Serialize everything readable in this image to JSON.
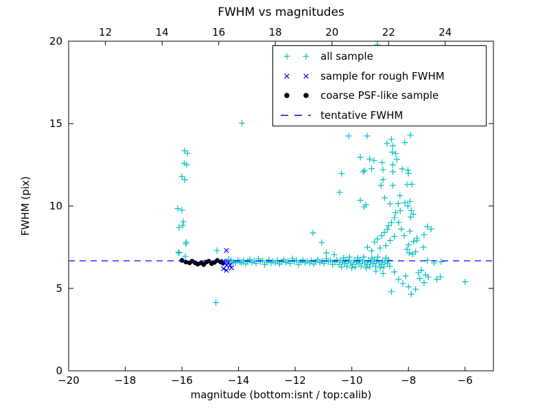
{
  "title": "FWHM vs magnitudes",
  "axes": {
    "xlabel": "magnitude (bottom:isnt / top:calib)",
    "ylabel": "FWHM (pix)",
    "x_ticks_bottom": {
      "values": [
        -20,
        -18,
        -16,
        -14,
        -12,
        -10,
        -8,
        -6
      ],
      "labels": [
        "−20",
        "−18",
        "−16",
        "−14",
        "−12",
        "−10",
        "−8",
        "−6"
      ]
    },
    "x_ticks_top": {
      "calib_values": [
        12,
        14,
        16,
        18,
        20,
        22,
        24
      ],
      "positions_isnt": [
        -18.7,
        -16.7,
        -14.7,
        -12.7,
        -10.7,
        -8.7,
        -6.7
      ],
      "labels": [
        "12",
        "14",
        "16",
        "18",
        "20",
        "22",
        "24"
      ]
    },
    "y_ticks": {
      "values": [
        0,
        5,
        10,
        15,
        20
      ],
      "labels": [
        "0",
        "5",
        "10",
        "15",
        "20"
      ]
    }
  },
  "legend": {
    "items": [
      {
        "label": "all sample",
        "marker": "plus",
        "color": "#00bfbf"
      },
      {
        "label": "sample for rough FWHM",
        "marker": "x",
        "color": "#0000ff"
      },
      {
        "label": "coarse PSF-like sample",
        "marker": "dot",
        "color": "#000000"
      },
      {
        "label": "tentative FWHM",
        "marker": "dash",
        "color": "#0000ff"
      }
    ]
  },
  "chart_data": {
    "type": "scatter",
    "title": "FWHM vs magnitudes",
    "xlabel": "magnitude (bottom:isnt / top:calib)",
    "ylabel": "FWHM (pix)",
    "xlim": [
      -20,
      -5
    ],
    "ylim": [
      0,
      20
    ],
    "grid": false,
    "legend_position": "upper right",
    "top_axis_relation": "calib = isnt + 30.7",
    "series": [
      {
        "name": "all sample",
        "marker": "plus",
        "color": "#00bfbf",
        "points": [
          [
            -15.9,
            13.35
          ],
          [
            -15.8,
            13.2
          ],
          [
            -15.92,
            12.6
          ],
          [
            -15.83,
            12.5
          ],
          [
            -16.0,
            11.78
          ],
          [
            -15.9,
            11.6
          ],
          [
            -16.15,
            9.85
          ],
          [
            -16.0,
            9.75
          ],
          [
            -15.95,
            9.05
          ],
          [
            -16.1,
            8.7
          ],
          [
            -15.97,
            8.82
          ],
          [
            -15.85,
            7.8
          ],
          [
            -16.1,
            7.15
          ],
          [
            -15.86,
            7.7
          ],
          [
            -16.12,
            7.2
          ],
          [
            -15.88,
            6.95
          ],
          [
            -14.35,
            6.78
          ],
          [
            -14.26,
            6.68
          ],
          [
            -14.19,
            6.6
          ],
          [
            -14.11,
            6.55
          ],
          [
            -14.02,
            6.7
          ],
          [
            -14.76,
            7.3
          ],
          [
            -13.95,
            6.62
          ],
          [
            -13.88,
            15.03
          ],
          [
            -14.8,
            4.14
          ],
          [
            -11.37,
            8.37
          ],
          [
            -11.06,
            7.78
          ],
          [
            -10.9,
            7.15
          ],
          [
            -10.62,
            7.05
          ],
          [
            -9.1,
            19.8
          ],
          [
            -6.0,
            5.4
          ],
          [
            -6.87,
            5.7
          ],
          [
            -7.2,
            8.6
          ],
          [
            -13.9,
            6.55
          ],
          [
            -13.83,
            6.7
          ],
          [
            -13.75,
            6.48
          ],
          [
            -13.68,
            6.62
          ],
          [
            -13.6,
            6.75
          ],
          [
            -13.53,
            6.58
          ],
          [
            -13.45,
            6.66
          ],
          [
            -13.38,
            6.52
          ],
          [
            -13.3,
            6.8
          ],
          [
            -13.23,
            6.63
          ],
          [
            -13.15,
            6.7
          ],
          [
            -13.08,
            6.45
          ],
          [
            -13.0,
            6.6
          ],
          [
            -12.93,
            6.72
          ],
          [
            -12.85,
            6.55
          ],
          [
            -12.78,
            6.65
          ],
          [
            -12.7,
            6.55
          ],
          [
            -12.63,
            6.7
          ],
          [
            -12.55,
            6.48
          ],
          [
            -12.48,
            6.62
          ],
          [
            -12.4,
            6.75
          ],
          [
            -12.33,
            6.58
          ],
          [
            -12.25,
            6.66
          ],
          [
            -12.18,
            6.52
          ],
          [
            -12.1,
            6.8
          ],
          [
            -12.03,
            6.63
          ],
          [
            -11.95,
            6.7
          ],
          [
            -11.88,
            6.45
          ],
          [
            -11.8,
            6.6
          ],
          [
            -11.73,
            6.72
          ],
          [
            -11.65,
            6.55
          ],
          [
            -11.58,
            6.65
          ],
          [
            -11.5,
            6.55
          ],
          [
            -11.43,
            6.7
          ],
          [
            -11.35,
            6.48
          ],
          [
            -11.28,
            6.62
          ],
          [
            -11.2,
            6.75
          ],
          [
            -11.13,
            6.58
          ],
          [
            -11.05,
            6.66
          ],
          [
            -10.98,
            6.52
          ],
          [
            -10.9,
            6.8
          ],
          [
            -10.83,
            6.63
          ],
          [
            -10.75,
            6.7
          ],
          [
            -10.68,
            6.45
          ],
          [
            -10.6,
            6.6
          ],
          [
            -10.53,
            6.72
          ],
          [
            -10.45,
            6.45
          ],
          [
            -10.41,
            6.7
          ],
          [
            -10.37,
            6.3
          ],
          [
            -10.33,
            6.6
          ],
          [
            -10.29,
            6.85
          ],
          [
            -10.25,
            6.5
          ],
          [
            -10.21,
            6.72
          ],
          [
            -10.17,
            6.35
          ],
          [
            -10.12,
            6.65
          ],
          [
            -10.08,
            6.9
          ],
          [
            -10.04,
            6.55
          ],
          [
            -10.0,
            6.25
          ],
          [
            -9.96,
            6.45
          ],
          [
            -9.92,
            6.7
          ],
          [
            -9.88,
            6.3
          ],
          [
            -9.83,
            6.6
          ],
          [
            -9.79,
            6.85
          ],
          [
            -9.75,
            6.5
          ],
          [
            -9.71,
            6.72
          ],
          [
            -9.67,
            6.35
          ],
          [
            -9.62,
            6.65
          ],
          [
            -9.58,
            6.9
          ],
          [
            -9.54,
            6.55
          ],
          [
            -9.5,
            6.25
          ],
          [
            -9.46,
            6.45
          ],
          [
            -9.41,
            6.7
          ],
          [
            -9.37,
            6.3
          ],
          [
            -9.33,
            6.6
          ],
          [
            -9.29,
            6.85
          ],
          [
            -9.25,
            6.5
          ],
          [
            -9.2,
            6.72
          ],
          [
            -9.16,
            6.35
          ],
          [
            -9.12,
            6.65
          ],
          [
            -9.08,
            6.9
          ],
          [
            -9.04,
            6.55
          ],
          [
            -9.0,
            6.25
          ],
          [
            -8.95,
            6.45
          ],
          [
            -8.91,
            6.7
          ],
          [
            -8.87,
            6.3
          ],
          [
            -8.83,
            6.6
          ],
          [
            -8.79,
            6.85
          ],
          [
            -8.74,
            6.5
          ],
          [
            -8.7,
            6.72
          ],
          [
            -8.66,
            6.35
          ],
          [
            -7.33,
            6.7
          ],
          [
            -7.1,
            6.55
          ],
          [
            -6.85,
            6.62
          ],
          [
            -10.11,
            14.25
          ],
          [
            -9.46,
            14.25
          ],
          [
            -7.93,
            14.3
          ],
          [
            -8.6,
            14.05
          ],
          [
            -8.76,
            13.8
          ],
          [
            -8.55,
            13.65
          ],
          [
            -8.13,
            13.85
          ],
          [
            -8.57,
            13.27
          ],
          [
            -8.45,
            13.18
          ],
          [
            -9.7,
            12.96
          ],
          [
            -9.37,
            12.85
          ],
          [
            -9.22,
            12.76
          ],
          [
            -8.93,
            12.64
          ],
          [
            -8.55,
            12.5
          ],
          [
            -8.41,
            12.83
          ],
          [
            -9.3,
            12.27
          ],
          [
            -9.55,
            12.16
          ],
          [
            -8.9,
            12.2
          ],
          [
            -8.55,
            12.08
          ],
          [
            -8.22,
            12.25
          ],
          [
            -8.02,
            12.18
          ],
          [
            -10.36,
            11.97
          ],
          [
            -9.6,
            12.08
          ],
          [
            -8.0,
            11.98
          ],
          [
            -8.9,
            11.6
          ],
          [
            -8.97,
            11.25
          ],
          [
            -8.55,
            11.25
          ],
          [
            -8.05,
            11.3
          ],
          [
            -7.88,
            11.32
          ],
          [
            -10.43,
            10.83
          ],
          [
            -9.7,
            10.35
          ],
          [
            -9.5,
            10.08
          ],
          [
            -9.57,
            9.95
          ],
          [
            -8.84,
            10.5
          ],
          [
            -8.65,
            10.13
          ],
          [
            -8.36,
            10.15
          ],
          [
            -8.29,
            9.72
          ],
          [
            -8.3,
            10.63
          ],
          [
            -8.12,
            10.2
          ],
          [
            -7.95,
            10.28
          ],
          [
            -8.02,
            10.0
          ],
          [
            -7.9,
            9.72
          ],
          [
            -7.83,
            9.5
          ],
          [
            -7.92,
            9.33
          ],
          [
            -8.45,
            9.6
          ],
          [
            -7.33,
            8.75
          ],
          [
            -7.95,
            8.47
          ],
          [
            -8.15,
            8.2
          ],
          [
            -7.7,
            8.05
          ],
          [
            -7.45,
            8.26
          ],
          [
            -8.0,
            7.64
          ],
          [
            -7.82,
            7.84
          ],
          [
            -7.7,
            7.92
          ],
          [
            -7.47,
            7.5
          ],
          [
            -8.05,
            7.37
          ],
          [
            -7.97,
            7.15
          ],
          [
            -7.85,
            7.08
          ],
          [
            -7.75,
            7.22
          ],
          [
            -8.5,
            9.3
          ],
          [
            -8.6,
            9.0
          ],
          [
            -8.7,
            8.8
          ],
          [
            -8.75,
            8.58
          ],
          [
            -8.85,
            8.4
          ],
          [
            -8.95,
            8.2
          ],
          [
            -9.1,
            8.0
          ],
          [
            -9.2,
            7.8
          ],
          [
            -8.35,
            9.0
          ],
          [
            -8.25,
            8.6
          ],
          [
            -8.5,
            8.15
          ],
          [
            -8.65,
            7.9
          ],
          [
            -8.8,
            7.6
          ],
          [
            -9.0,
            7.45
          ],
          [
            -9.3,
            7.28
          ],
          [
            -9.45,
            7.5
          ],
          [
            -8.6,
            4.8
          ],
          [
            -8.2,
            5.3
          ],
          [
            -8.0,
            5.1
          ],
          [
            -7.9,
            4.65
          ],
          [
            -7.75,
            4.95
          ],
          [
            -8.35,
            5.55
          ],
          [
            -8.1,
            5.75
          ],
          [
            -7.6,
            5.6
          ],
          [
            -7.4,
            5.83
          ],
          [
            -7.3,
            5.7
          ],
          [
            -7.0,
            5.56
          ],
          [
            -7.45,
            5.35
          ],
          [
            -8.5,
            6.0
          ],
          [
            -8.9,
            5.9
          ],
          [
            -9.15,
            6.05
          ],
          [
            -7.55,
            6.1
          ],
          [
            -7.65,
            5.95
          ]
        ]
      },
      {
        "name": "sample for rough FWHM",
        "marker": "x",
        "color": "#0000ff",
        "points": [
          [
            -14.43,
            7.3
          ],
          [
            -14.53,
            6.65
          ],
          [
            -14.48,
            6.5
          ],
          [
            -14.42,
            6.4
          ],
          [
            -14.53,
            6.2
          ],
          [
            -14.43,
            6.1
          ],
          [
            -14.35,
            6.6
          ],
          [
            -14.3,
            6.4
          ],
          [
            -14.25,
            6.25
          ]
        ]
      },
      {
        "name": "coarse PSF-like sample",
        "marker": "dot",
        "color": "#000000",
        "points": [
          [
            -16.0,
            6.7
          ],
          [
            -15.86,
            6.6
          ],
          [
            -15.73,
            6.55
          ],
          [
            -15.64,
            6.65
          ],
          [
            -15.53,
            6.55
          ],
          [
            -15.44,
            6.47
          ],
          [
            -15.32,
            6.55
          ],
          [
            -15.23,
            6.44
          ],
          [
            -15.14,
            6.6
          ],
          [
            -15.05,
            6.65
          ],
          [
            -14.95,
            6.5
          ],
          [
            -14.85,
            6.58
          ],
          [
            -14.75,
            6.7
          ],
          [
            -14.63,
            6.6
          ],
          [
            -14.55,
            6.55
          ]
        ]
      },
      {
        "name": "tentative FWHM",
        "type": "hline",
        "linestyle": "dashed",
        "color": "#0000ff",
        "y": 6.67
      }
    ]
  }
}
